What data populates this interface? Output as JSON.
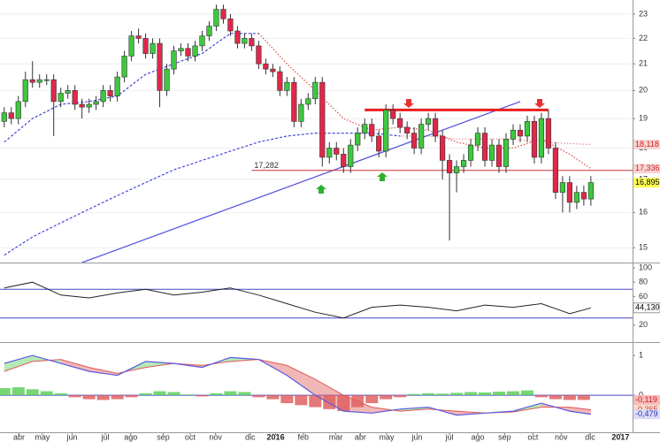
{
  "chart_data": [
    {
      "type": "candlestick",
      "xlim": [
        -0.6,
        88.9
      ],
      "ylim": [
        14.6,
        23.6
      ],
      "log_scale": true,
      "grid": true,
      "yticks": [
        15,
        16,
        17,
        18,
        19,
        20,
        21,
        22,
        23
      ],
      "xticks": [
        {
          "value": 2.1,
          "label": "abr"
        },
        {
          "value": 5.4,
          "label": "may"
        },
        {
          "value": 9.6,
          "label": "jun"
        },
        {
          "value": 14.3,
          "label": "jul"
        },
        {
          "value": 17.9,
          "label": "ago"
        },
        {
          "value": 22.5,
          "label": "sep"
        },
        {
          "value": 26.3,
          "label": "oct"
        },
        {
          "value": 29.9,
          "label": "nov"
        },
        {
          "value": 34.8,
          "label": "dic"
        },
        {
          "value": 38.4,
          "label": "2016",
          "bold": true
        },
        {
          "value": 42.3,
          "label": "feb"
        },
        {
          "value": 46.9,
          "label": "mar"
        },
        {
          "value": 50.4,
          "label": "abr"
        },
        {
          "value": 54.1,
          "label": "may"
        },
        {
          "value": 58.4,
          "label": "jun"
        },
        {
          "value": 63.0,
          "label": "jul"
        },
        {
          "value": 67.0,
          "label": "ago"
        },
        {
          "value": 70.8,
          "label": "sep"
        },
        {
          "value": 74.8,
          "label": "oct"
        },
        {
          "value": 78.8,
          "label": "nov"
        },
        {
          "value": 82.9,
          "label": "dic"
        },
        {
          "value": 87.2,
          "label": "2017",
          "bold": true
        }
      ],
      "up_color": "#3dc83d",
      "down_color": "#e0284a",
      "open": [
        18.9,
        19.2,
        19.0,
        19.6,
        20.4,
        20.3,
        20.4,
        20.4,
        19.6,
        19.9,
        20.0,
        19.5,
        19.4,
        19.5,
        19.6,
        20.0,
        19.8,
        20.5,
        21.3,
        22.1,
        22.0,
        21.4,
        21.8,
        20.0,
        20.8,
        21.5,
        21.6,
        21.3,
        21.7,
        22.1,
        22.5,
        23.2,
        22.8,
        22.3,
        21.8,
        22.0,
        21.7,
        21.0,
        20.8,
        20.7,
        20.0,
        20.3,
        18.9,
        19.5,
        19.7,
        20.3,
        17.7,
        18.0,
        17.8,
        17.4,
        18.1,
        18.5,
        18.8,
        18.4,
        17.9,
        19.3,
        19.0,
        18.7,
        18.5,
        18.0,
        18.8,
        19.0,
        18.4,
        17.6,
        17.2,
        17.4,
        17.6,
        18.1,
        18.5,
        17.6,
        18.1,
        17.4,
        18.3,
        18.6,
        18.4,
        18.9,
        17.7,
        19.0,
        18.0,
        16.6,
        16.9,
        16.3,
        16.6,
        16.4
      ],
      "high": [
        19.4,
        19.4,
        19.8,
        20.7,
        21.1,
        20.6,
        20.6,
        20.6,
        20.1,
        20.2,
        20.2,
        19.7,
        19.7,
        19.8,
        20.2,
        20.2,
        20.7,
        21.5,
        22.3,
        22.4,
        22.2,
        22.0,
        22.0,
        21.0,
        21.7,
        21.8,
        21.8,
        21.9,
        22.3,
        22.7,
        23.4,
        23.4,
        23.0,
        22.5,
        22.2,
        22.2,
        21.9,
        21.2,
        21.0,
        20.9,
        20.5,
        20.5,
        19.7,
        19.9,
        20.5,
        20.5,
        18.2,
        18.2,
        18.0,
        18.3,
        18.7,
        19.0,
        19.0,
        18.6,
        19.5,
        19.5,
        19.2,
        18.9,
        18.7,
        19.0,
        19.2,
        19.2,
        18.6,
        17.8,
        17.6,
        17.8,
        18.3,
        18.7,
        18.7,
        18.3,
        18.3,
        18.5,
        18.8,
        18.8,
        19.1,
        19.1,
        19.2,
        19.3,
        18.2,
        17.1,
        17.1,
        16.8,
        16.8,
        17.1
      ],
      "low": [
        18.7,
        18.8,
        18.8,
        19.4,
        20.1,
        20.1,
        20.2,
        18.4,
        19.4,
        19.7,
        19.3,
        19.0,
        19.2,
        19.3,
        19.4,
        19.6,
        19.6,
        20.3,
        21.1,
        21.8,
        21.2,
        21.2,
        19.4,
        19.8,
        20.6,
        21.3,
        21.1,
        21.1,
        21.5,
        21.9,
        22.3,
        22.6,
        22.1,
        21.6,
        21.6,
        21.5,
        20.8,
        20.6,
        20.5,
        19.8,
        19.8,
        18.7,
        18.7,
        19.3,
        19.5,
        17.4,
        17.5,
        17.6,
        17.2,
        17.2,
        17.9,
        18.3,
        18.2,
        17.7,
        17.7,
        18.8,
        18.5,
        18.3,
        17.8,
        17.8,
        18.6,
        18.2,
        17.0,
        15.2,
        16.6,
        17.2,
        17.4,
        17.9,
        17.4,
        17.4,
        17.2,
        17.2,
        18.1,
        18.2,
        18.2,
        17.5,
        17.5,
        17.8,
        16.4,
        16.0,
        16.0,
        16.1,
        16.2,
        16.2
      ],
      "close": [
        19.2,
        19.0,
        19.6,
        20.4,
        20.3,
        20.4,
        20.4,
        19.6,
        19.9,
        20.0,
        19.5,
        19.4,
        19.5,
        19.6,
        20.0,
        19.8,
        20.5,
        21.3,
        22.1,
        22.0,
        21.4,
        21.8,
        20.0,
        20.8,
        21.5,
        21.6,
        21.3,
        21.7,
        22.1,
        22.5,
        23.2,
        22.8,
        22.3,
        21.8,
        22.0,
        21.7,
        21.0,
        20.8,
        20.7,
        20.0,
        20.3,
        18.9,
        19.5,
        19.7,
        20.3,
        17.7,
        18.0,
        17.8,
        17.4,
        18.1,
        18.5,
        18.8,
        18.4,
        17.9,
        19.3,
        19.0,
        18.7,
        18.5,
        18.0,
        18.8,
        19.0,
        18.4,
        17.6,
        17.2,
        17.4,
        17.6,
        18.1,
        18.5,
        17.6,
        18.1,
        17.4,
        18.3,
        18.6,
        18.4,
        18.9,
        17.7,
        19.0,
        18.0,
        16.6,
        16.9,
        16.3,
        16.6,
        16.4,
        16.9
      ],
      "overlays": [
        {
          "style": "dashed",
          "color": "#4646e0",
          "x": [
            0,
            4,
            8,
            12,
            16,
            20,
            24,
            28,
            32,
            36,
            40,
            44,
            48,
            52,
            56,
            60,
            64,
            68,
            72,
            76,
            80,
            83
          ],
          "values": [
            18.2,
            19.0,
            19.5,
            19.6,
            19.8,
            20.6,
            21.0,
            21.4,
            22.2,
            22.2,
            null,
            null,
            null,
            null,
            null,
            null,
            null,
            null,
            null,
            null,
            null,
            null
          ]
        },
        {
          "style": "dotted",
          "color": "#e04848",
          "x": [
            0,
            4,
            8,
            12,
            16,
            20,
            24,
            28,
            32,
            36,
            40,
            44,
            48,
            52,
            56,
            60,
            64,
            68,
            72,
            76,
            80,
            83
          ],
          "values": [
            null,
            null,
            null,
            null,
            null,
            null,
            null,
            null,
            null,
            22.2,
            21.0,
            20.0,
            19.0,
            18.6,
            18.7,
            18.6,
            18.2,
            18.0,
            18.0,
            18.3,
            17.8,
            17.336
          ]
        },
        {
          "style": "dashed",
          "color": "#4646e0",
          "x": [
            0,
            4,
            8,
            12,
            16,
            20,
            24,
            28,
            32,
            36,
            40,
            44,
            48,
            52,
            56,
            60,
            64,
            68,
            72,
            76,
            80,
            83
          ],
          "values": [
            14.8,
            15.3,
            15.7,
            16.1,
            16.5,
            16.9,
            17.3,
            17.6,
            17.9,
            18.2,
            18.4,
            18.5,
            18.5,
            18.5,
            18.4,
            null,
            null,
            null,
            null,
            null,
            null,
            null
          ]
        },
        {
          "style": "dotted",
          "color": "#f08a8a",
          "x": [
            0,
            4,
            8,
            12,
            16,
            20,
            24,
            28,
            32,
            36,
            40,
            44,
            48,
            52,
            56,
            60,
            64,
            68,
            72,
            76,
            80,
            83
          ],
          "values": [
            null,
            null,
            null,
            null,
            null,
            null,
            null,
            null,
            null,
            null,
            null,
            null,
            null,
            null,
            18.4,
            18.4,
            18.3,
            18.3,
            18.3,
            18.2,
            18.15,
            18.118
          ]
        },
        {
          "style": "solid",
          "color": "#5a5ae0",
          "x": [
            11,
            73
          ],
          "values": [
            14.6,
            19.6
          ]
        }
      ],
      "levels": [
        {
          "value": 19.3,
          "x": [
            51,
            77
          ],
          "color": "#e82020",
          "width": 3
        },
        {
          "value": 17.282,
          "label": "17,282",
          "x": [
            35,
            88.9
          ],
          "color": "#cc3333",
          "width": 1
        }
      ],
      "price_labels": [
        {
          "value": 18.118,
          "label": "18,118",
          "color": "#f7d4d4",
          "text_color": "#d02020"
        },
        {
          "value": 17.336,
          "label": "17,336",
          "color": "#f7d4d4",
          "text_color": "#d02020"
        },
        {
          "value": 16.895,
          "label": "16,895",
          "color": "#ffff55",
          "text_color": "#000000"
        }
      ]
    },
    {
      "type": "line",
      "xlim": [
        -0.6,
        88.9
      ],
      "ylim": [
        0,
        100
      ],
      "yticks": [
        100,
        80,
        60,
        40,
        20
      ],
      "color": "#222222",
      "levels": [
        70,
        30
      ],
      "level_color": "#4646c8",
      "x": [
        0,
        4,
        8,
        12,
        16,
        20,
        24,
        28,
        32,
        36,
        40,
        44,
        48,
        52,
        56,
        60,
        64,
        68,
        72,
        76,
        80,
        83
      ],
      "values": [
        72,
        80,
        62,
        58,
        65,
        70,
        62,
        66,
        72,
        62,
        50,
        38,
        30,
        45,
        48,
        45,
        40,
        48,
        45,
        50,
        36,
        44.13
      ],
      "price_labels": [
        {
          "value": 44.13,
          "label": "44,130",
          "color": "#ffffff",
          "text_color": "#000000"
        }
      ]
    },
    {
      "type": "macd",
      "xlim": [
        -0.6,
        88.9
      ],
      "ylim": [
        -0.91,
        1.27
      ],
      "yticks": [
        1,
        0
      ],
      "levels": [
        0
      ],
      "level_color": "#4646c8",
      "x": [
        0,
        4,
        8,
        12,
        16,
        20,
        24,
        28,
        32,
        36,
        40,
        44,
        48,
        52,
        56,
        60,
        64,
        68,
        72,
        76,
        80,
        83
      ],
      "macd": [
        0.8,
        1.0,
        0.8,
        0.6,
        0.5,
        0.85,
        0.8,
        0.7,
        0.95,
        0.9,
        0.5,
        0.0,
        -0.4,
        -0.45,
        -0.35,
        -0.3,
        -0.5,
        -0.45,
        -0.4,
        -0.2,
        -0.4,
        -0.479
      ],
      "signal": [
        0.6,
        0.85,
        0.9,
        0.7,
        0.55,
        0.7,
        0.8,
        0.75,
        0.85,
        0.9,
        0.75,
        0.4,
        0.0,
        -0.3,
        -0.4,
        -0.35,
        -0.4,
        -0.45,
        -0.42,
        -0.3,
        -0.3,
        -0.365
      ],
      "macd_color": "#5a5ae0",
      "signal_color": "#e05a5a",
      "up_color": "#5cd05c",
      "down_color": "#e06060",
      "hist_x": [
        0,
        2,
        4,
        6,
        8,
        10,
        12,
        14,
        16,
        18,
        20,
        22,
        24,
        26,
        28,
        30,
        32,
        34,
        36,
        38,
        40,
        42,
        44,
        46,
        48,
        50,
        52,
        54,
        56,
        58,
        60,
        62,
        64,
        66,
        68,
        70,
        72,
        74,
        76,
        78,
        80,
        82
      ],
      "hist": [
        0.18,
        0.2,
        0.15,
        0.1,
        0.05,
        -0.05,
        -0.1,
        -0.12,
        -0.1,
        -0.05,
        0.05,
        0.1,
        0.08,
        0.02,
        -0.03,
        0.05,
        0.1,
        0.08,
        -0.05,
        -0.1,
        -0.2,
        -0.25,
        -0.3,
        -0.35,
        -0.4,
        -0.3,
        -0.2,
        -0.1,
        -0.05,
        0.03,
        0.05,
        0.04,
        0.06,
        0.08,
        0.07,
        0.09,
        0.1,
        0.12,
        -0.05,
        -0.1,
        -0.12,
        -0.119
      ],
      "price_labels": [
        {
          "value": -0.119,
          "label": "-0,119",
          "color": "#f5bcbc",
          "text_color": "#d02020"
        },
        {
          "value": -0.365,
          "label": "-0,365",
          "color": "#f8dccc",
          "text_color": "#d04040"
        },
        {
          "value": -0.479,
          "label": "-0,479",
          "color": "#dcdcf8",
          "text_color": "#3030b0"
        }
      ]
    }
  ]
}
